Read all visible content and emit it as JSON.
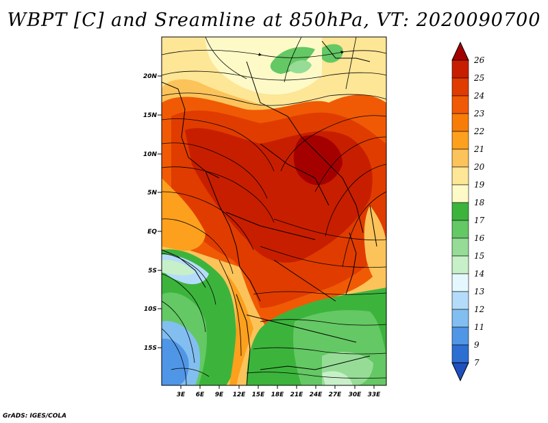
{
  "title": "WBPT [C] and Sreamline at 850hPa, VT: 2020090700",
  "credit": "GrADS: IGES/COLA",
  "map": {
    "lat_labels": [
      "20N",
      "15N",
      "10N",
      "5N",
      "EQ",
      "5S",
      "10S",
      "15S"
    ],
    "lon_labels": [
      "3E",
      "6E",
      "9E",
      "12E",
      "15E",
      "18E",
      "21E",
      "24E",
      "27E",
      "30E",
      "33E"
    ]
  },
  "colorbar": {
    "labels": [
      "26",
      "25",
      "24",
      "23",
      "22",
      "21",
      "20",
      "19",
      "18",
      "17",
      "16",
      "15",
      "14",
      "13",
      "12",
      "11",
      "9",
      "7"
    ],
    "colors": [
      "#a50000",
      "#c81e00",
      "#e03c00",
      "#f05a05",
      "#f87d08",
      "#fca01e",
      "#fcc35a",
      "#fde696",
      "#fefac8",
      "#3cb43c",
      "#64c864",
      "#96dc96",
      "#c8f0c8",
      "#e6f8ff",
      "#b4dcfa",
      "#82bef0",
      "#5096e6",
      "#2d6ed2",
      "#1e50c0"
    ]
  }
}
